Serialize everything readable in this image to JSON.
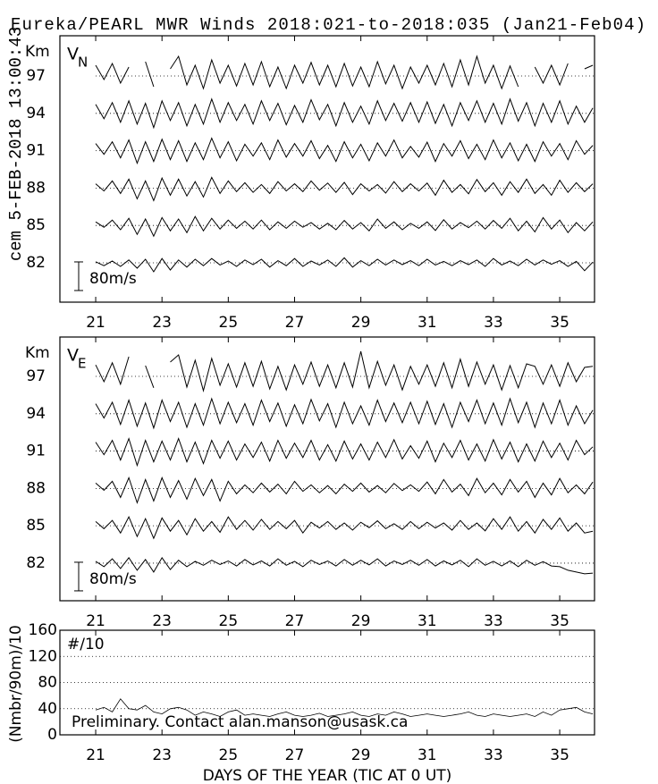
{
  "chart_data": [
    {
      "type": "line",
      "title": "Eureka/PEARL MWR Winds 2018:021-to-2018:035 (Jan21-Feb04)",
      "annotation": "cem 5-FEB-2018 13:00:43",
      "ylabel": "Km",
      "label": "V",
      "label_subscript": "N",
      "scale_bar": {
        "value": 80,
        "label": "80m/s"
      },
      "x": [
        21,
        21.25,
        21.5,
        21.75,
        22,
        22.25,
        22.5,
        22.75,
        23,
        23.25,
        23.5,
        23.75,
        24,
        24.25,
        24.5,
        24.75,
        25,
        25.25,
        25.5,
        25.75,
        26,
        26.25,
        26.5,
        26.75,
        27,
        27.25,
        27.5,
        27.75,
        28,
        28.25,
        28.5,
        28.75,
        29,
        29.25,
        29.5,
        29.75,
        30,
        30.25,
        30.5,
        30.75,
        31,
        31.25,
        31.5,
        31.75,
        32,
        32.25,
        32.5,
        32.75,
        33,
        33.25,
        33.5,
        33.75,
        34,
        34.25,
        34.5,
        34.75,
        35,
        35.25,
        35.5,
        35.75,
        36
      ],
      "xlim": [
        19.92,
        36.05
      ],
      "xticks": [
        21,
        23,
        25,
        27,
        29,
        31,
        33,
        35
      ],
      "ylim": [
        78.84,
        100.23
      ],
      "yticks": [
        82,
        85,
        88,
        91,
        94,
        97
      ],
      "grid": true,
      "color": "#000000",
      "series": [
        {
          "values": [
            3,
            -8,
            5,
            -10,
            8,
            -15,
            10,
            -25,
            12,
            -20,
            8,
            -12,
            10,
            -8,
            12,
            -6,
            5,
            -10,
            8,
            -5,
            10,
            -12,
            6,
            -8,
            12,
            -10,
            5,
            -6,
            8,
            -10,
            14,
            -12,
            6,
            -8,
            10,
            -6,
            8,
            -5,
            6,
            -8,
            10,
            -6,
            4,
            -8,
            6,
            -5,
            8,
            -10,
            12,
            -6,
            5,
            -8,
            10,
            -6,
            8,
            -4,
            6,
            -10,
            4,
            -22,
            2
          ]
        },
        {
          "values": [
            10,
            -5,
            15,
            -12,
            20,
            -25,
            18,
            -30,
            22,
            -15,
            18,
            -20,
            25,
            -15,
            20,
            -10,
            15,
            -8,
            12,
            -10,
            15,
            -12,
            10,
            -8,
            12,
            -5,
            8,
            -10,
            6,
            -12,
            14,
            -10,
            8,
            -15,
            18,
            -8,
            10,
            -12,
            6,
            -8,
            10,
            -14,
            16,
            -10,
            8,
            -6,
            12,
            -10,
            14,
            -8,
            20,
            -15,
            12,
            -18,
            22,
            -10,
            15,
            -20,
            8,
            -15,
            10
          ]
        },
        {
          "values": [
            12,
            -8,
            20,
            -15,
            25,
            -30,
            20,
            -35,
            28,
            -20,
            25,
            -22,
            18,
            -25,
            30,
            -15,
            20,
            -10,
            15,
            -12,
            10,
            -15,
            18,
            -8,
            12,
            -10,
            20,
            -6,
            14,
            -12,
            16,
            -18,
            12,
            -8,
            10,
            -14,
            18,
            -10,
            12,
            -8,
            14,
            -20,
            22,
            -12,
            10,
            -16,
            24,
            -10,
            15,
            -20,
            18,
            -12,
            25,
            -15,
            10,
            -20,
            22,
            -12,
            15,
            -10,
            12
          ]
        },
        {
          "values": [
            20,
            -10,
            25,
            -20,
            30,
            -35,
            25,
            -30,
            32,
            -25,
            28,
            -30,
            22,
            -25,
            35,
            -20,
            25,
            -28,
            18,
            -15,
            22,
            -25,
            30,
            -18,
            20,
            -15,
            28,
            -22,
            15,
            -30,
            25,
            -20,
            18,
            -28,
            22,
            -15,
            30,
            -20,
            12,
            -18,
            24,
            -30,
            20,
            -15,
            28,
            -22,
            18,
            -25,
            30,
            -20,
            22,
            -28,
            18,
            -30,
            25,
            -15,
            20,
            -25,
            28,
            -10,
            15
          ]
        },
        {
          "values": [
            25,
            -15,
            30,
            -25,
            35,
            -30,
            28,
            -40,
            35,
            -20,
            30,
            -35,
            25,
            -30,
            40,
            -25,
            30,
            -20,
            25,
            -30,
            35,
            -20,
            28,
            -32,
            22,
            -25,
            38,
            -18,
            25,
            -35,
            30,
            -25,
            20,
            -30,
            35,
            -20,
            28,
            -22,
            30,
            -25,
            32,
            -28,
            25,
            -35,
            30,
            -20,
            35,
            -25,
            28,
            -30,
            40,
            -22,
            30,
            -35,
            28,
            -25,
            35,
            -30,
            20,
            -25,
            15
          ]
        },
        {
          "values": [
            30,
            -10,
            35,
            -20,
            25,
            null,
            40,
            -30,
            null,
            20,
            55,
            -25,
            30,
            -35,
            45,
            -20,
            30,
            -28,
            35,
            -25,
            40,
            -30,
            25,
            -35,
            30,
            -20,
            38,
            -25,
            30,
            -30,
            35,
            -28,
            25,
            -30,
            40,
            -22,
            30,
            -35,
            25,
            -20,
            30,
            -25,
            35,
            -30,
            45,
            -25,
            55,
            -20,
            30,
            -35,
            28,
            -30,
            null,
            25,
            -20,
            30,
            -25,
            35,
            null,
            20,
            30
          ]
        }
      ]
    },
    {
      "type": "line",
      "ylabel": "Km",
      "label": "V",
      "label_subscript": "E",
      "scale_bar": {
        "value": 80,
        "label": "80m/s"
      },
      "x": [
        21,
        21.25,
        21.5,
        21.75,
        22,
        22.25,
        22.5,
        22.75,
        23,
        23.25,
        23.5,
        23.75,
        24,
        24.25,
        24.5,
        24.75,
        25,
        25.25,
        25.5,
        25.75,
        26,
        26.25,
        26.5,
        26.75,
        27,
        27.25,
        27.5,
        27.75,
        28,
        28.25,
        28.5,
        28.75,
        29,
        29.25,
        29.5,
        29.75,
        30,
        30.25,
        30.5,
        30.75,
        31,
        31.25,
        31.5,
        31.75,
        32,
        32.25,
        32.5,
        32.75,
        33,
        33.25,
        33.5,
        33.75,
        34,
        34.25,
        34.5,
        34.75,
        35,
        35.25,
        35.5,
        35.75,
        36
      ],
      "xlim": [
        19.92,
        36.05
      ],
      "xticks": [
        21,
        23,
        25,
        27,
        29,
        31,
        33,
        35
      ],
      "ylim": [
        78.98,
        100.16
      ],
      "yticks": [
        82,
        85,
        88,
        91,
        94,
        97
      ],
      "grid": true,
      "color": "#000000",
      "series": [
        {
          "values": [
            5,
            -10,
            12,
            -15,
            15,
            -20,
            10,
            -25,
            15,
            -18,
            8,
            -10,
            5,
            -6,
            8,
            -4,
            6,
            -8,
            10,
            -5,
            6,
            -8,
            12,
            -6,
            5,
            -10,
            8,
            -4,
            6,
            -8,
            10,
            -6,
            8,
            -5,
            12,
            -8,
            6,
            -4,
            8,
            -6,
            10,
            -8,
            6,
            -5,
            8,
            -10,
            12,
            -6,
            5,
            -8,
            6,
            -10,
            8,
            -6,
            4,
            -8,
            -10,
            -20,
            -25,
            -30,
            -28
          ]
        },
        {
          "values": [
            12,
            -8,
            15,
            -20,
            25,
            -30,
            20,
            -35,
            22,
            -15,
            15,
            -25,
            20,
            -15,
            12,
            -18,
            25,
            -10,
            15,
            -12,
            18,
            -10,
            12,
            -8,
            15,
            -20,
            10,
            -6,
            12,
            -10,
            8,
            -12,
            10,
            -5,
            14,
            -8,
            6,
            -10,
            12,
            -8,
            10,
            -6,
            8,
            -12,
            15,
            -10,
            8,
            -14,
            20,
            -10,
            25,
            -15,
            12,
            -20,
            18,
            -10,
            22,
            -15,
            8,
            -20,
            -15
          ]
        },
        {
          "values": [
            15,
            -5,
            20,
            -25,
            30,
            -40,
            25,
            -35,
            30,
            -25,
            22,
            -30,
            28,
            -20,
            25,
            -35,
            20,
            -15,
            10,
            -12,
            15,
            -10,
            12,
            -15,
            20,
            -8,
            10,
            -12,
            8,
            -15,
            12,
            -8,
            15,
            -10,
            8,
            -12,
            14,
            -6,
            10,
            -8,
            18,
            -15,
            25,
            -10,
            12,
            -20,
            28,
            -12,
            15,
            -18,
            25,
            -10,
            20,
            -25,
            15,
            -18,
            28,
            -12,
            10,
            -15,
            18
          ]
        },
        {
          "values": [
            25,
            -10,
            30,
            -25,
            35,
            -40,
            30,
            -30,
            28,
            -25,
            35,
            -30,
            25,
            -35,
            30,
            -20,
            28,
            -25,
            20,
            -18,
            25,
            -28,
            30,
            -20,
            22,
            -18,
            30,
            -25,
            18,
            -28,
            28,
            -22,
            20,
            -25,
            25,
            -18,
            32,
            -22,
            15,
            -20,
            28,
            -30,
            22,
            -18,
            30,
            -25,
            20,
            -28,
            32,
            -22,
            25,
            -30,
            20,
            -28,
            28,
            -18,
            22,
            -25,
            30,
            -10,
            12
          ]
        },
        {
          "values": [
            28,
            -12,
            32,
            -30,
            38,
            -35,
            30,
            -40,
            38,
            -22,
            32,
            -38,
            28,
            -32,
            42,
            -28,
            32,
            -25,
            28,
            -32,
            38,
            -22,
            30,
            -35,
            25,
            -28,
            40,
            -20,
            28,
            -38,
            32,
            -28,
            22,
            -32,
            38,
            -22,
            30,
            -25,
            32,
            -28,
            35,
            -30,
            28,
            -38,
            32,
            -22,
            38,
            -28,
            30,
            -32,
            42,
            -25,
            32,
            -38,
            30,
            -28,
            38,
            -32,
            22,
            -28,
            10
          ]
        },
        {
          "values": [
            32,
            -15,
            38,
            -22,
            55,
            null,
            30,
            -32,
            null,
            40,
            60,
            -30,
            45,
            -40,
            50,
            -25,
            35,
            -30,
            38,
            -28,
            42,
            -35,
            28,
            -38,
            32,
            -22,
            40,
            -28,
            32,
            -32,
            38,
            -30,
            70,
            -32,
            42,
            -25,
            32,
            -38,
            28,
            -22,
            32,
            -28,
            38,
            -32,
            48,
            -28,
            40,
            -22,
            32,
            -38,
            30,
            -32,
            35,
            28,
            -22,
            32,
            -28,
            38,
            -15,
            25,
            28
          ]
        }
      ]
    },
    {
      "type": "line",
      "ylabel": "(Nmbr/90m)/10",
      "label": "#/10",
      "annotation": "Preliminary. Contact alan.manson@usask.ca",
      "xlabel": "DAYS OF THE YEAR (TIC AT 0 UT)",
      "x": [
        21,
        21.25,
        21.5,
        21.75,
        22,
        22.25,
        22.5,
        22.75,
        23,
        23.25,
        23.5,
        23.75,
        24,
        24.25,
        24.5,
        24.75,
        25,
        25.25,
        25.5,
        25.75,
        26,
        26.25,
        26.5,
        26.75,
        27,
        27.25,
        27.5,
        27.75,
        28,
        28.25,
        28.5,
        28.75,
        29,
        29.25,
        29.5,
        29.75,
        30,
        30.25,
        30.5,
        30.75,
        31,
        31.25,
        31.5,
        31.75,
        32,
        32.25,
        32.5,
        32.75,
        33,
        33.25,
        33.5,
        33.75,
        34,
        34.25,
        34.5,
        34.75,
        35,
        35.25,
        35.5,
        35.75,
        36
      ],
      "xlim": [
        19.92,
        36.05
      ],
      "xticks": [
        21,
        23,
        25,
        27,
        29,
        31,
        33,
        35
      ],
      "ylim": [
        0,
        160
      ],
      "yticks": [
        0,
        40,
        80,
        120,
        160
      ],
      "grid": true,
      "color": "#000000",
      "values": [
        38,
        42,
        35,
        55,
        40,
        38,
        45,
        35,
        32,
        40,
        42,
        38,
        30,
        35,
        32,
        28,
        35,
        38,
        30,
        32,
        30,
        28,
        32,
        35,
        30,
        28,
        30,
        33,
        28,
        30,
        32,
        35,
        30,
        28,
        32,
        30,
        35,
        32,
        28,
        30,
        32,
        30,
        28,
        30,
        32,
        35,
        30,
        28,
        32,
        30,
        28,
        30,
        32,
        28,
        35,
        30,
        38,
        40,
        42,
        35,
        32
      ]
    }
  ]
}
